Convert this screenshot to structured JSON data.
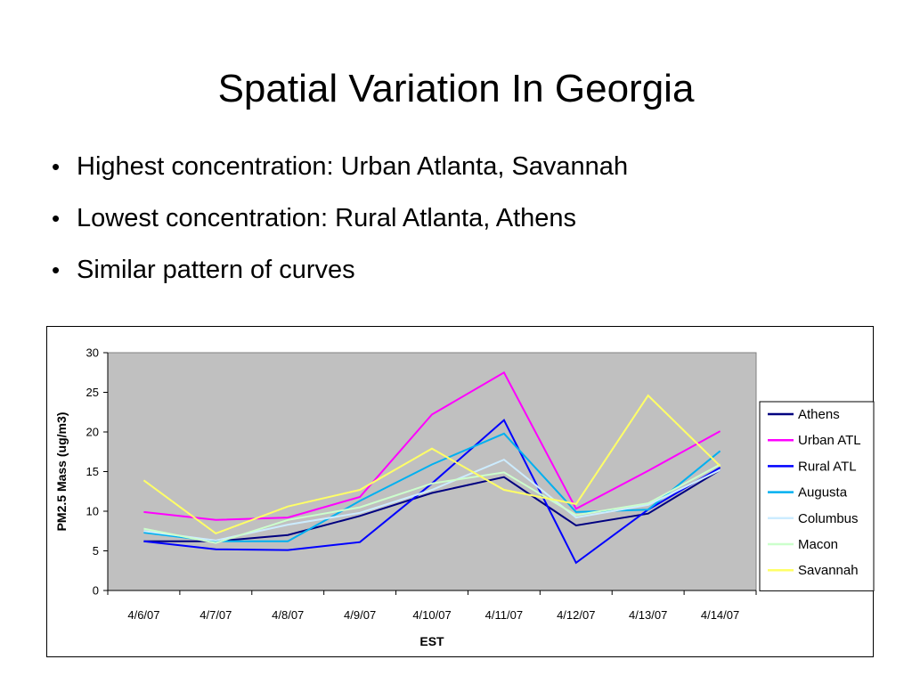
{
  "slide": {
    "title": "Spatial Variation In Georgia",
    "bullets": [
      "Highest concentration:  Urban Atlanta, Savannah",
      "Lowest concentration:  Rural Atlanta, Athens",
      "Similar pattern of curves"
    ],
    "bullet_glyph": "•"
  },
  "chart_data": {
    "type": "line",
    "title": "",
    "xlabel": "EST",
    "ylabel": "PM2.5 Mass (ug/m3)",
    "ylim": [
      0,
      30
    ],
    "yticks": [
      "0",
      "5",
      "10",
      "15",
      "20",
      "25",
      "30"
    ],
    "categories": [
      "4/6/07",
      "4/7/07",
      "4/8/07",
      "4/9/07",
      "4/10/07",
      "4/11/07",
      "4/12/07",
      "4/13/07",
      "4/14/07"
    ],
    "plot_background": "#c0c0c0",
    "grid": false,
    "legend_position": "right",
    "series": [
      {
        "name": "Athens",
        "color": "#000080",
        "values": [
          6.2,
          6.2,
          7.0,
          9.4,
          12.3,
          14.3,
          8.2,
          9.7,
          15.2
        ]
      },
      {
        "name": "Urban ATL",
        "color": "#ff00ff",
        "values": [
          9.9,
          8.9,
          9.2,
          11.8,
          22.2,
          27.5,
          10.3,
          15.1,
          20.1
        ]
      },
      {
        "name": "Rural ATL",
        "color": "#0000ff",
        "values": [
          6.2,
          5.2,
          5.1,
          6.1,
          13.5,
          21.5,
          3.5,
          10.2,
          15.5
        ]
      },
      {
        "name": "Augusta",
        "color": "#00b0f0",
        "values": [
          7.3,
          6.2,
          6.2,
          11.3,
          15.9,
          19.8,
          9.9,
          10.2,
          17.6
        ]
      },
      {
        "name": "Columbus",
        "color": "#ccecff",
        "values": [
          7.5,
          6.3,
          8.3,
          9.8,
          12.7,
          16.5,
          9.2,
          10.8,
          15.2
        ]
      },
      {
        "name": "Macon",
        "color": "#ccffcc",
        "values": [
          7.8,
          6.0,
          8.9,
          10.5,
          13.5,
          14.9,
          9.5,
          11.0,
          15.9
        ]
      },
      {
        "name": "Savannah",
        "color": "#ffff66",
        "values": [
          13.9,
          7.2,
          10.6,
          12.7,
          17.9,
          12.7,
          10.9,
          24.6,
          15.7
        ]
      }
    ]
  }
}
